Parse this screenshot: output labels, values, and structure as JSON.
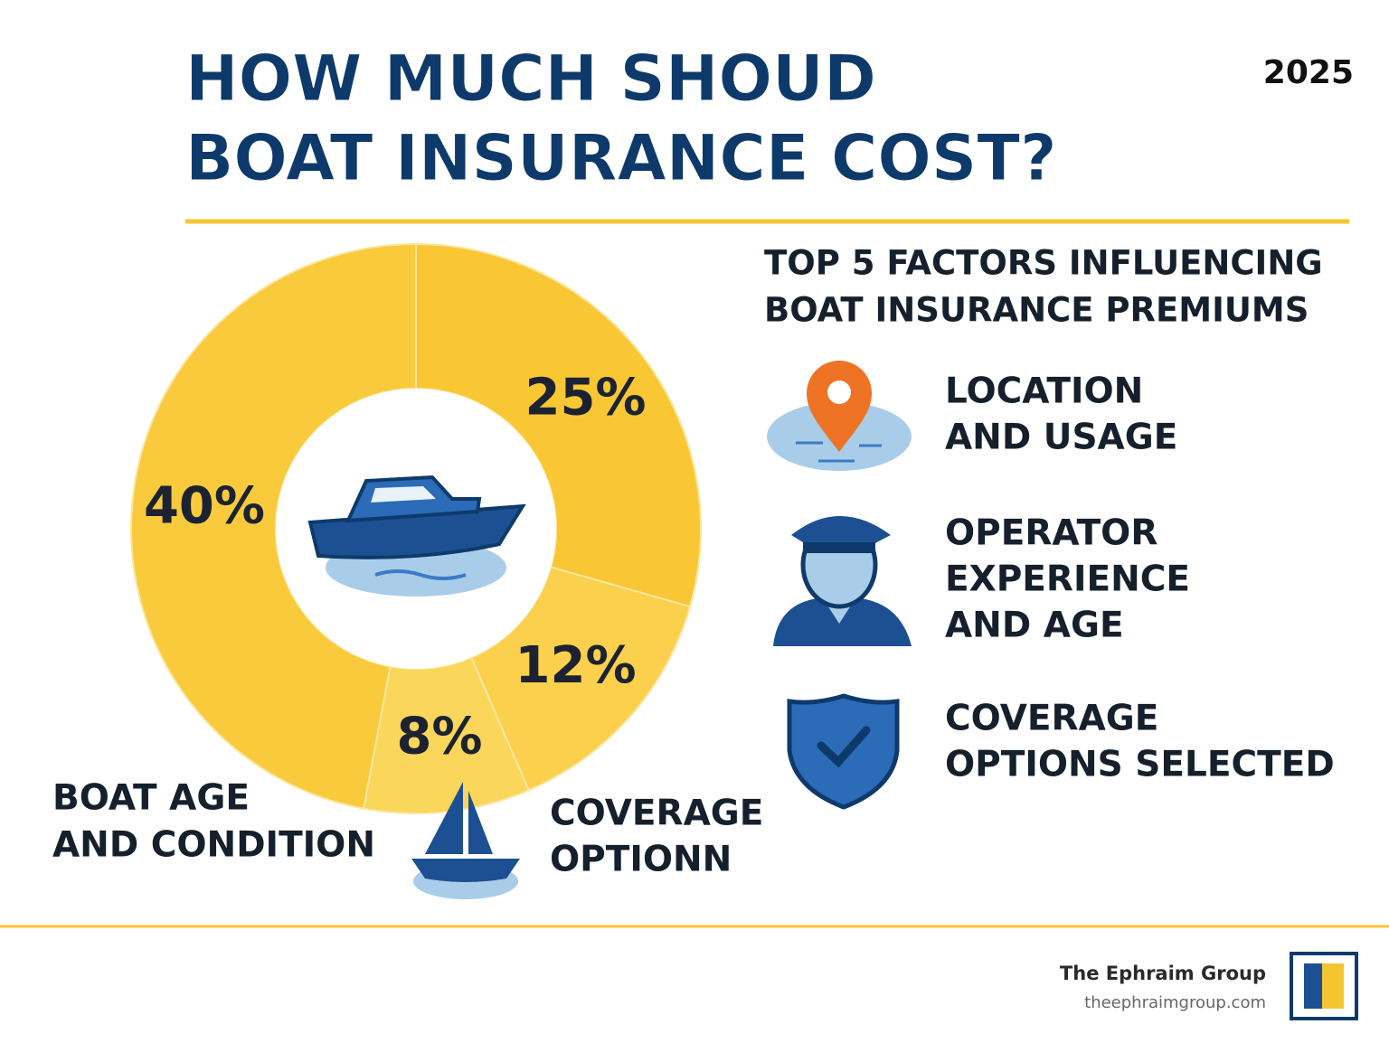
{
  "chart_data": {
    "type": "donut",
    "title": [
      "HOW MUCH SHOUD",
      "BOAT INSURANCE COST?"
    ],
    "subtitle": "2025",
    "values": [
      25,
      12,
      8,
      40
    ],
    "value_labels": [
      "25%",
      "12%",
      "8%",
      "40%"
    ],
    "colors": [
      "#f9c733",
      "#fbd04c",
      "#fad65a",
      "#f9ca3c"
    ],
    "annotations": [
      {
        "lines": [
          "BOAT AGE",
          "AND CONDITION"
        ]
      },
      {
        "lines": [
          "COVERAGE",
          "OPTIONN"
        ]
      }
    ]
  },
  "factors": {
    "title": [
      "TOP 5 FACTORS INFLUENCING",
      "BOAT INSURANCE PREMIUMS"
    ],
    "items": [
      {
        "lines": [
          "LOCATION",
          "AND USAGE"
        ]
      },
      {
        "lines": [
          "OPERATOR",
          "EXPERIENCE",
          "AND AGE"
        ]
      },
      {
        "lines": [
          "COVERAGE",
          "OPTIONS SELECTED"
        ]
      }
    ]
  },
  "footer": {
    "brand": "The Ephraim Group",
    "url": "theephraimgroup.com"
  }
}
